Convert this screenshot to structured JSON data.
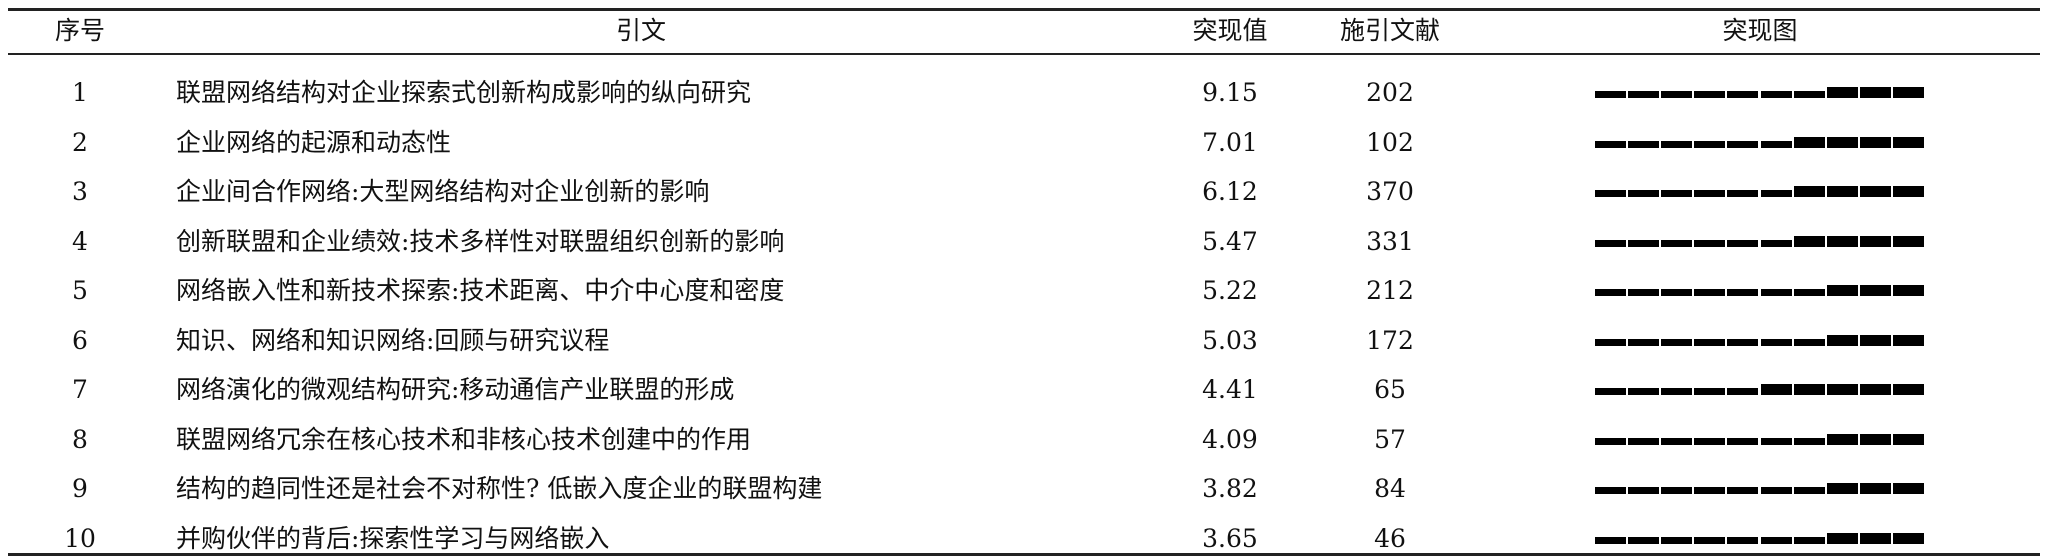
{
  "headers": {
    "no": "序号",
    "title": "引文",
    "burst_value": "突现值",
    "citing": "施引文献",
    "burst_chart": "突现图"
  },
  "burst_segments": 10,
  "rows": [
    {
      "no": "1",
      "title": "联盟网络结构对企业探索式创新构成影响的纵向研究",
      "burst_value": "9.15",
      "citing": "202",
      "burst_start_index": 7
    },
    {
      "no": "2",
      "title": "企业网络的起源和动态性",
      "burst_value": "7.01",
      "citing": "102",
      "burst_start_index": 6
    },
    {
      "no": "3",
      "title": "企业间合作网络:大型网络结构对企业创新的影响",
      "burst_value": "6.12",
      "citing": "370",
      "burst_start_index": 6
    },
    {
      "no": "4",
      "title": "创新联盟和企业绩效:技术多样性对联盟组织创新的影响",
      "burst_value": "5.47",
      "citing": "331",
      "burst_start_index": 6
    },
    {
      "no": "5",
      "title": "网络嵌入性和新技术探索:技术距离、中介中心度和密度",
      "burst_value": "5.22",
      "citing": "212",
      "burst_start_index": 7
    },
    {
      "no": "6",
      "title": "知识、网络和知识网络:回顾与研究议程",
      "burst_value": "5.03",
      "citing": "172",
      "burst_start_index": 7
    },
    {
      "no": "7",
      "title": "网络演化的微观结构研究:移动通信产业联盟的形成",
      "burst_value": "4.41",
      "citing": "65",
      "burst_start_index": 5
    },
    {
      "no": "8",
      "title": "联盟网络冗余在核心技术和非核心技术创建中的作用",
      "burst_value": "4.09",
      "citing": "57",
      "burst_start_index": 7
    },
    {
      "no": "9",
      "title": "结构的趋同性还是社会不对称性? 低嵌入度企业的联盟构建",
      "burst_value": "3.82",
      "citing": "84",
      "burst_start_index": 7
    },
    {
      "no": "10",
      "title": "并购伙伴的背后:探索性学习与网络嵌入",
      "burst_value": "3.65",
      "citing": "46",
      "burst_start_index": 7
    }
  ]
}
